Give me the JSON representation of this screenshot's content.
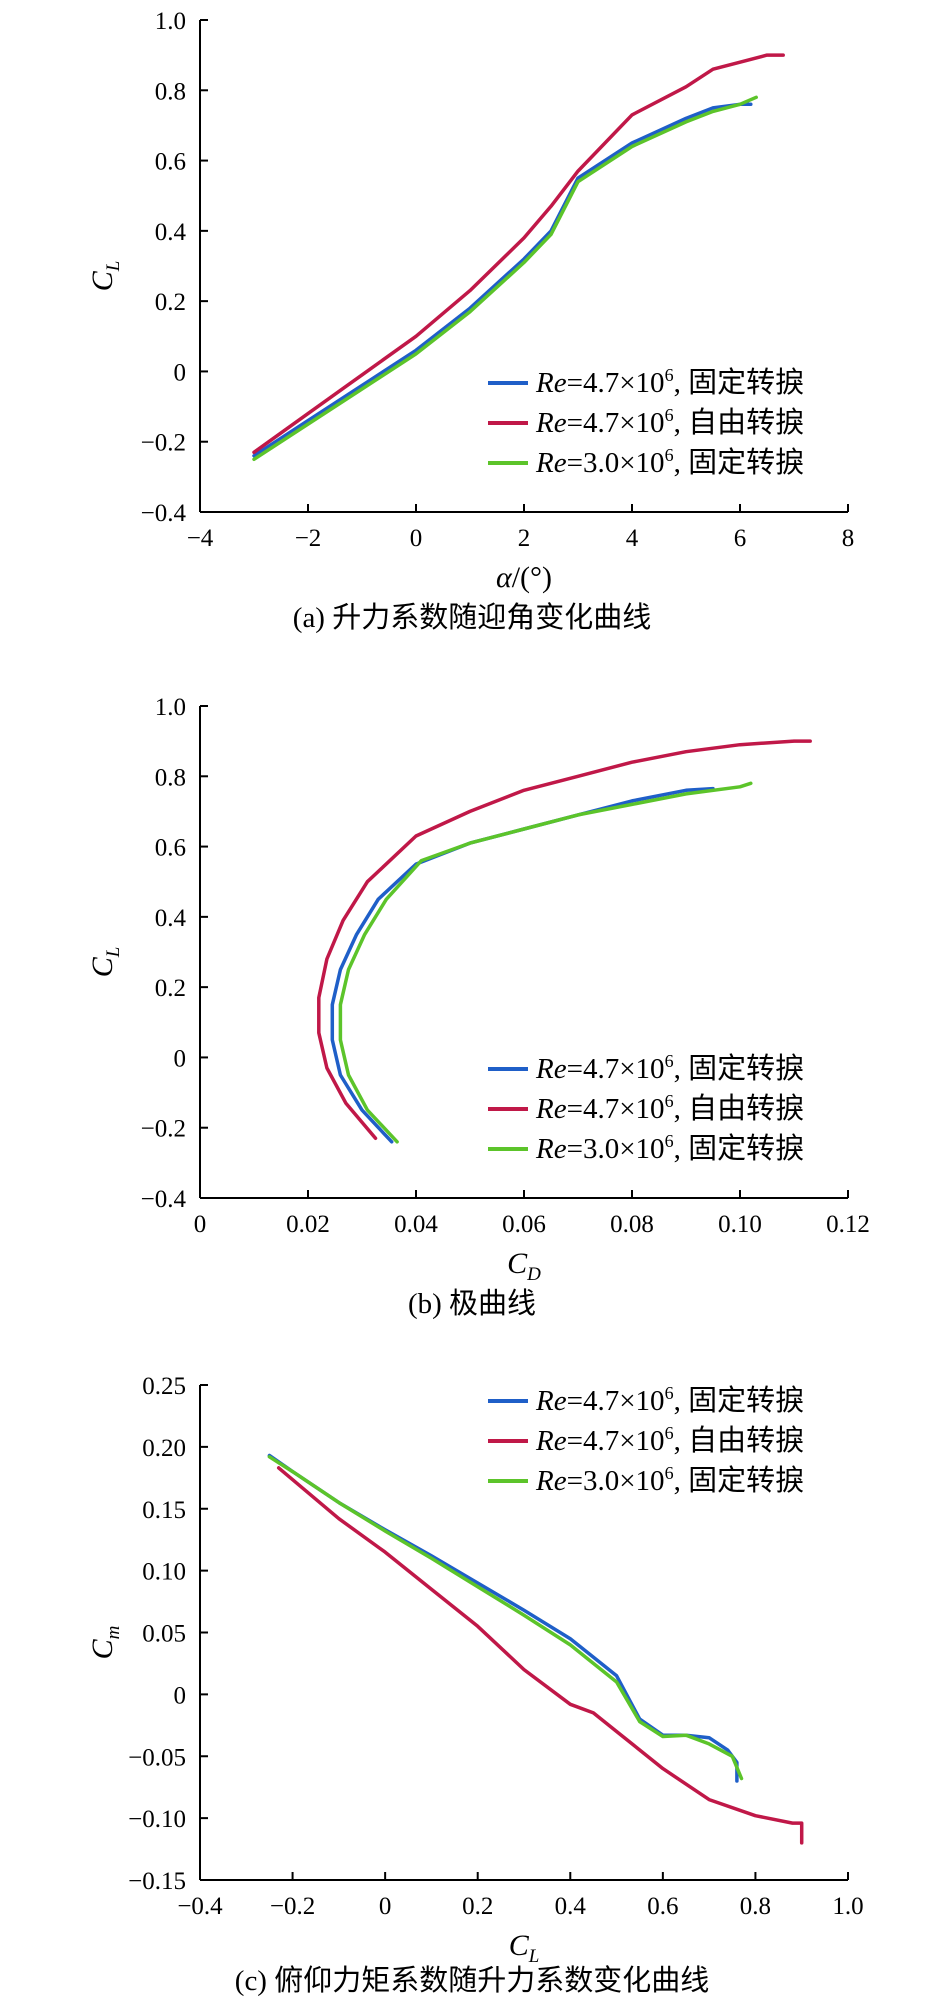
{
  "chart_data": [
    {
      "type": "line",
      "caption": "(a) 升力系数随迎角变化曲线",
      "xlabel": "α/(°)",
      "ylabel": "C_L",
      "xlim": [
        -4,
        8
      ],
      "ylim": [
        -0.4,
        1.0
      ],
      "xticks": [
        "−4",
        "−2",
        "0",
        "2",
        "4",
        "6",
        "8"
      ],
      "yticks": [
        "−0.4",
        "−0.2",
        "0",
        "0.2",
        "0.4",
        "0.6",
        "0.8",
        "1.0"
      ],
      "legend": "bottom-right",
      "series": [
        {
          "name": "Re=4.7×10⁶, 固定转捩",
          "label_italic": "Re",
          "label_rest": "=4.7×10",
          "label_sup": "6",
          "label_tail": ", 固定转捩",
          "color": "#1f5fc8",
          "x": [
            -3.0,
            -2.0,
            -1.0,
            0.0,
            1.0,
            2.0,
            2.5,
            3.0,
            4.0,
            5.0,
            5.5,
            6.0,
            6.2
          ],
          "y": [
            -0.24,
            -0.14,
            -0.04,
            0.06,
            0.18,
            0.32,
            0.4,
            0.55,
            0.65,
            0.72,
            0.75,
            0.76,
            0.76
          ]
        },
        {
          "name": "Re=4.7×10⁶, 自由转捩",
          "label_italic": "Re",
          "label_rest": "=4.7×10",
          "label_sup": "6",
          "label_tail": ", 自由转捩",
          "color": "#c01848",
          "x": [
            -3.0,
            -2.0,
            -1.0,
            0.0,
            1.0,
            2.0,
            2.5,
            3.0,
            4.0,
            5.0,
            5.5,
            6.0,
            6.5,
            6.8
          ],
          "y": [
            -0.23,
            -0.12,
            -0.01,
            0.1,
            0.23,
            0.38,
            0.47,
            0.57,
            0.73,
            0.81,
            0.86,
            0.88,
            0.9,
            0.9
          ]
        },
        {
          "name": "Re=3.0×10⁶, 固定转捩",
          "label_italic": "Re",
          "label_rest": "=3.0×10",
          "label_sup": "6",
          "label_tail": ", 固定转捩",
          "color": "#5cc42a",
          "x": [
            -3.0,
            -2.0,
            -1.0,
            0.0,
            1.0,
            2.0,
            2.5,
            3.0,
            4.0,
            5.0,
            5.5,
            6.0,
            6.3
          ],
          "y": [
            -0.25,
            -0.15,
            -0.05,
            0.05,
            0.17,
            0.31,
            0.39,
            0.54,
            0.64,
            0.71,
            0.74,
            0.76,
            0.78
          ]
        }
      ]
    },
    {
      "type": "line",
      "caption": "(b) 极曲线",
      "xlabel": "C_D",
      "ylabel": "C_L",
      "xlim": [
        0,
        0.12
      ],
      "ylim": [
        -0.4,
        1.0
      ],
      "xticks": [
        "0",
        "0.02",
        "0.04",
        "0.06",
        "0.08",
        "0.10",
        "0.12"
      ],
      "yticks": [
        "−0.4",
        "−0.2",
        "0",
        "0.2",
        "0.4",
        "0.6",
        "0.8",
        "1.0"
      ],
      "legend": "bottom-right",
      "series": [
        {
          "name": "Re=4.7×10⁶, 固定转捩",
          "label_italic": "Re",
          "label_rest": "=4.7×10",
          "label_sup": "6",
          "label_tail": ", 固定转捩",
          "color": "#1f5fc8",
          "x": [
            0.0355,
            0.03,
            0.026,
            0.0245,
            0.0245,
            0.026,
            0.029,
            0.033,
            0.04,
            0.05,
            0.06,
            0.07,
            0.08,
            0.09,
            0.095
          ],
          "y": [
            -0.24,
            -0.15,
            -0.05,
            0.05,
            0.15,
            0.25,
            0.35,
            0.45,
            0.55,
            0.61,
            0.65,
            0.69,
            0.73,
            0.76,
            0.765
          ]
        },
        {
          "name": "Re=4.7×10⁶, 自由转捩",
          "label_italic": "Re",
          "label_rest": "=4.7×10",
          "label_sup": "6",
          "label_tail": ", 自由转捩",
          "color": "#c01848",
          "x": [
            0.0325,
            0.027,
            0.0235,
            0.022,
            0.022,
            0.0235,
            0.0265,
            0.031,
            0.04,
            0.05,
            0.06,
            0.07,
            0.08,
            0.09,
            0.1,
            0.11,
            0.113
          ],
          "y": [
            -0.23,
            -0.13,
            -0.03,
            0.07,
            0.17,
            0.28,
            0.39,
            0.5,
            0.63,
            0.7,
            0.76,
            0.8,
            0.84,
            0.87,
            0.89,
            0.9,
            0.9
          ]
        },
        {
          "name": "Re=3.0×10⁶, 固定转捩",
          "label_italic": "Re",
          "label_rest": "=3.0×10",
          "label_sup": "6",
          "label_tail": ", 固定转捩",
          "color": "#5cc42a",
          "x": [
            0.0365,
            0.031,
            0.0275,
            0.026,
            0.026,
            0.0275,
            0.0305,
            0.0345,
            0.041,
            0.05,
            0.06,
            0.07,
            0.08,
            0.09,
            0.1,
            0.102
          ],
          "y": [
            -0.24,
            -0.15,
            -0.05,
            0.05,
            0.15,
            0.25,
            0.35,
            0.45,
            0.56,
            0.61,
            0.65,
            0.69,
            0.72,
            0.75,
            0.77,
            0.78
          ]
        }
      ]
    },
    {
      "type": "line",
      "caption": "(c) 俯仰力矩系数随升力系数变化曲线",
      "xlabel": "C_L",
      "ylabel": "C_m",
      "xlim": [
        -0.4,
        1.0
      ],
      "ylim": [
        -0.15,
        0.25
      ],
      "xticks": [
        "−0.4",
        "−0.2",
        "0",
        "0.2",
        "0.4",
        "0.6",
        "0.8",
        "1.0"
      ],
      "yticks": [
        "−0.15",
        "−0.10",
        "−0.05",
        "0",
        "0.05",
        "0.10",
        "0.15",
        "0.20",
        "0.25"
      ],
      "legend": "top-right",
      "series": [
        {
          "name": "Re=4.7×10⁶, 固定转捩",
          "label_italic": "Re",
          "label_rest": "=4.7×10",
          "label_sup": "6",
          "label_tail": ", 固定转捩",
          "color": "#1f5fc8",
          "x": [
            -0.25,
            -0.2,
            -0.1,
            0.0,
            0.1,
            0.2,
            0.3,
            0.4,
            0.5,
            0.55,
            0.6,
            0.65,
            0.7,
            0.74,
            0.76,
            0.76
          ],
          "y": [
            0.193,
            0.18,
            0.155,
            0.133,
            0.112,
            0.09,
            0.068,
            0.045,
            0.015,
            -0.02,
            -0.033,
            -0.033,
            -0.035,
            -0.045,
            -0.055,
            -0.07
          ]
        },
        {
          "name": "Re=4.7×10⁶, 自由转捩",
          "label_italic": "Re",
          "label_rest": "=4.7×10",
          "label_sup": "6",
          "label_tail": ", 自由转捩",
          "color": "#c01848",
          "x": [
            -0.23,
            -0.1,
            0.0,
            0.1,
            0.2,
            0.3,
            0.4,
            0.45,
            0.5,
            0.6,
            0.7,
            0.8,
            0.88,
            0.9,
            0.9
          ],
          "y": [
            0.183,
            0.142,
            0.115,
            0.085,
            0.055,
            0.02,
            -0.008,
            -0.015,
            -0.03,
            -0.06,
            -0.085,
            -0.098,
            -0.104,
            -0.104,
            -0.12
          ]
        },
        {
          "name": "Re=3.0×10⁶, 固定转捩",
          "label_italic": "Re",
          "label_rest": "=3.0×10",
          "label_sup": "6",
          "label_tail": ", 固定转捩",
          "color": "#5cc42a",
          "x": [
            -0.25,
            -0.2,
            -0.1,
            0.0,
            0.1,
            0.2,
            0.3,
            0.4,
            0.5,
            0.55,
            0.6,
            0.65,
            0.7,
            0.75,
            0.77
          ],
          "y": [
            0.192,
            0.18,
            0.155,
            0.132,
            0.11,
            0.087,
            0.064,
            0.04,
            0.01,
            -0.022,
            -0.034,
            -0.033,
            -0.04,
            -0.05,
            -0.068
          ]
        }
      ]
    }
  ]
}
